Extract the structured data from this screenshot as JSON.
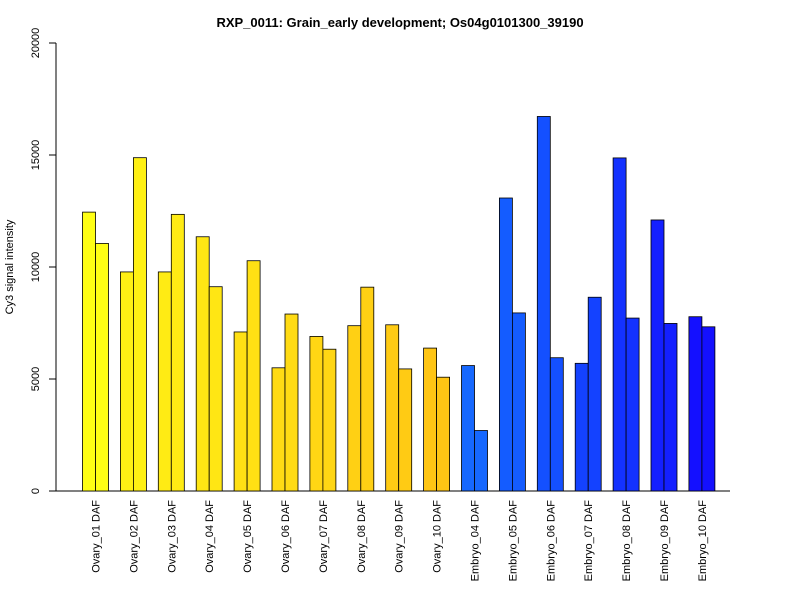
{
  "chart_data": {
    "type": "bar",
    "title": "RXP_0011: Grain_early development; Os04g0101300_39190",
    "xlabel": "",
    "ylabel": "Cy3 signal intensity",
    "ylim": [
      0,
      20000
    ],
    "yticks": [
      0,
      5000,
      10000,
      15000,
      20000
    ],
    "categories": [
      "Ovary_01 DAF",
      "Ovary_02 DAF",
      "Ovary_03 DAF",
      "Ovary_04 DAF",
      "Ovary_05 DAF",
      "Ovary_06 DAF",
      "Ovary_07 DAF",
      "Ovary_08 DAF",
      "Ovary_09 DAF",
      "Ovary_10 DAF",
      "Embryo_04 DAF",
      "Embryo_05 DAF",
      "Embryo_06 DAF",
      "Embryo_07 DAF",
      "Embryo_08 DAF",
      "Embryo_09 DAF",
      "Embryo_10 DAF"
    ],
    "group_colors": [
      "#ffff14",
      "#fff014",
      "#ffeb14",
      "#ffe614",
      "#ffe014",
      "#ffdb14",
      "#ffd614",
      "#ffd014",
      "#ffcb14",
      "#ffc514",
      "#1668ff",
      "#145cff",
      "#1450ff",
      "#1442ff",
      "#1432ff",
      "#1420ff",
      "#1410ff"
    ],
    "series": [
      {
        "values": [
          12450,
          9780,
          9780,
          11350,
          7100,
          5500,
          6900,
          7380,
          7420,
          6380,
          5600,
          13080,
          16720,
          5700,
          14870,
          12100,
          7780
        ]
      },
      {
        "values": [
          11050,
          14880,
          12350,
          9120,
          10280,
          7900,
          6330,
          9100,
          5450,
          5080,
          2700,
          7950,
          5950,
          8650,
          7720,
          7480,
          7330
        ]
      }
    ],
    "grid": false,
    "legend": "none"
  }
}
